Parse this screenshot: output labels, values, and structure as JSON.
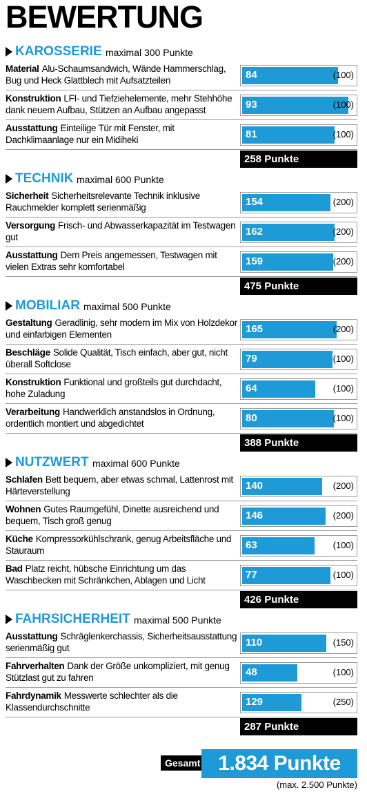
{
  "title": "BEWERTUNG",
  "sections": [
    {
      "name": "KAROSSERIE",
      "max_text": "maximal 300 Punkte",
      "total": "258 Punkte",
      "rows": [
        {
          "label": "Material",
          "text": "Alu-Schaumsandwich, Wände Hammerschlag, Bug und Heck Glattblech mit Aufsatzteilen",
          "score": 84,
          "max": {
            "value": 100,
            "label": "(100)"
          }
        },
        {
          "label": "Konstruktion",
          "text": "LFI- und Tiefziehelemente, mehr Stehhöhe dank neuem Aufbau, Stützen an Aufbau angepasst",
          "score": 93,
          "max": {
            "value": 100,
            "label": "(100)"
          }
        },
        {
          "label": "Ausstattung",
          "text": "Einteilige Tür mit Fenster, mit Dachklimaanlage nur ein Midiheki",
          "score": 81,
          "max": {
            "value": 100,
            "label": "(100)"
          }
        }
      ]
    },
    {
      "name": "TECHNIK",
      "max_text": "maximal 600 Punkte",
      "total": "475 Punkte",
      "rows": [
        {
          "label": "Sicherheit",
          "text": "Sicherheitsrelevante Technik inklusive Rauchmelder komplett serienmäßig",
          "score": 154,
          "max": {
            "value": 200,
            "label": "(200)"
          }
        },
        {
          "label": "Versorgung",
          "text": "Frisch- und Abwasserkapazität im Testwagen gut",
          "score": 162,
          "max": {
            "value": 200,
            "label": "(200)"
          }
        },
        {
          "label": "Ausstattung",
          "text": "Dem Preis angemessen, Testwagen mit vielen Extras sehr komfortabel",
          "score": 159,
          "max": {
            "value": 200,
            "label": "(200)"
          }
        }
      ]
    },
    {
      "name": "MOBILIAR",
      "max_text": "maximal 500 Punkte",
      "total": "388 Punkte",
      "rows": [
        {
          "label": "Gestaltung",
          "text": "Geradlinig, sehr modern im Mix von Holzdekor und einfarbigen Elementen",
          "score": 165,
          "max": {
            "value": 200,
            "label": "(200)"
          }
        },
        {
          "label": "Beschläge",
          "text": "Solide Qualität, Tisch einfach, aber gut, nicht überall Softclose",
          "score": 79,
          "max": {
            "value": 100,
            "label": "(100)"
          }
        },
        {
          "label": "Konstruktion",
          "text": "Funktional und großteils gut durchdacht, hohe Zuladung",
          "score": 64,
          "max": {
            "value": 100,
            "label": "(100)"
          }
        },
        {
          "label": "Verarbeitung",
          "text": "Handwerklich anstandslos in Ordnung, ordentlich montiert und abgedichtet",
          "score": 80,
          "max": {
            "value": 100,
            "label": "(100)"
          }
        }
      ]
    },
    {
      "name": "NUTZWERT",
      "max_text": "maximal 600 Punkte",
      "total": "426 Punkte",
      "rows": [
        {
          "label": "Schlafen",
          "text": "Bett bequem, aber etwas schmal, Lattenrost mit Härteverstellung",
          "score": 140,
          "max": {
            "value": 200,
            "label": "(200)"
          }
        },
        {
          "label": "Wohnen",
          "text": "Gutes Raumgefühl, Dinette ausreichend und bequem, Tisch groß genug",
          "score": 146,
          "max": {
            "value": 200,
            "label": "(200)"
          }
        },
        {
          "label": "Küche",
          "text": "Kompressorkühlschrank, genug Arbeitsfläche und Stauraum",
          "score": 63,
          "max": {
            "value": 100,
            "label": "(100)"
          }
        },
        {
          "label": "Bad",
          "text": "Platz reicht, hübsche Einrichtung um das Waschbecken mit Schränkchen, Ablagen und Licht",
          "score": 77,
          "max": {
            "value": 100,
            "label": "(100)"
          }
        }
      ]
    },
    {
      "name": "FAHRSICHERHEIT",
      "max_text": "maximal 500 Punkte",
      "total": "287 Punkte",
      "rows": [
        {
          "label": "Ausstattung",
          "text": "Schräglenkerchassis, Sicherheitsausstattung serienmäßig gut",
          "score": 110,
          "max": {
            "value": 150,
            "label": "(150)"
          }
        },
        {
          "label": "Fahrverhalten",
          "text": "Dank der Größe unkompliziert, mit genug Stützlast gut zu fahren",
          "score": 48,
          "max": {
            "value": 100,
            "label": "(100)"
          }
        },
        {
          "label": "Fahrdynamik",
          "text": "Messwerte schlechter als die Klassendurchschnitte",
          "score": 129,
          "max": {
            "value": 250,
            "label": "(250)"
          }
        }
      ]
    }
  ],
  "overall": {
    "label": "Gesamt",
    "value": "1.834 Punkte",
    "max_text": "(max. 2.500 Punkte)"
  }
}
